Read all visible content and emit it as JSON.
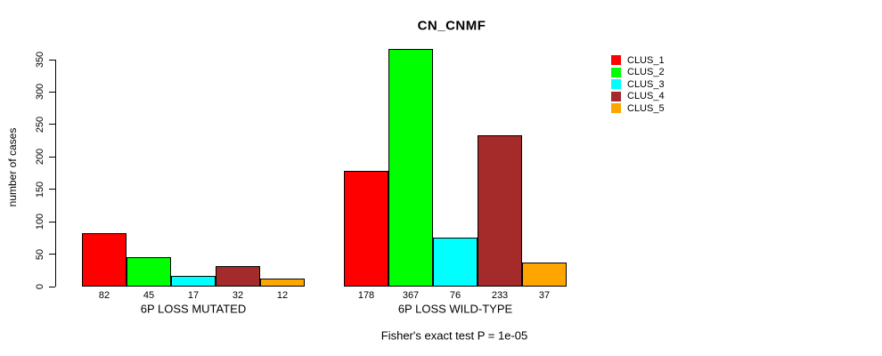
{
  "chart_data": {
    "type": "bar",
    "title": "CN_CNMF",
    "xlabel": "",
    "ylabel": "number of cases",
    "ylim": [
      0,
      350
    ],
    "yticks": [
      0,
      50,
      100,
      150,
      200,
      250,
      300,
      350
    ],
    "grid": false,
    "legend_position": "top-right",
    "groups": [
      {
        "label": "6P LOSS MUTATED",
        "values": [
          82,
          45,
          17,
          32,
          12
        ]
      },
      {
        "label": "6P LOSS WILD-TYPE",
        "values": [
          178,
          367,
          76,
          233,
          37
        ]
      }
    ],
    "series": [
      {
        "name": "CLUS_1",
        "color": "#FF0000"
      },
      {
        "name": "CLUS_2",
        "color": "#00FF00"
      },
      {
        "name": "CLUS_3",
        "color": "#00FFFF"
      },
      {
        "name": "CLUS_4",
        "color": "#A52A2A"
      },
      {
        "name": "CLUS_5",
        "color": "#FFA500"
      }
    ],
    "annotation": "Fisher's exact test P = 1e-05"
  }
}
